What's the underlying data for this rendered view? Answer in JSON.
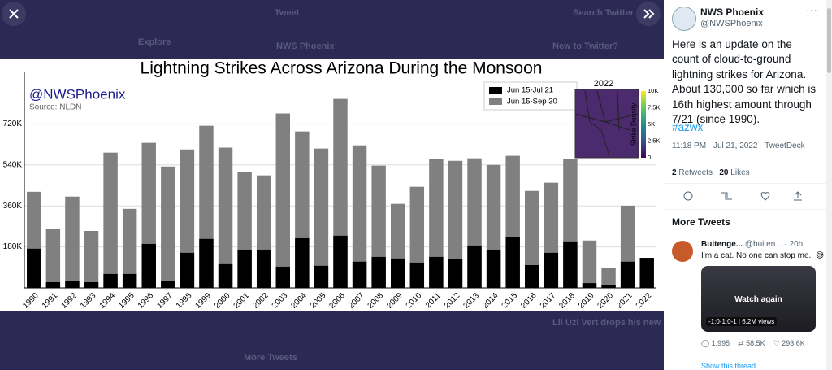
{
  "background": {
    "tweet": "Tweet",
    "explore": "Explore",
    "author": "NWS Phoenix",
    "search": "Search Twitter",
    "new_to_twitter": "New to Twitter?",
    "trend": "Lil Uzi Vert drops his new EP Red & White",
    "more_tweets": "More Tweets"
  },
  "chart_data": {
    "type": "bar",
    "title": "Lightning Strikes Across Arizona During the Monsoon",
    "watermark": "@NWSPhoenix",
    "source": "Source: NLDN",
    "categories": [
      "1990",
      "1991",
      "1992",
      "1993",
      "1994",
      "1995",
      "1996",
      "1997",
      "1998",
      "1999",
      "2000",
      "2001",
      "2002",
      "2003",
      "2004",
      "2005",
      "2006",
      "2007",
      "2008",
      "2009",
      "2010",
      "2011",
      "2012",
      "2013",
      "2014",
      "2015",
      "2016",
      "2017",
      "2018",
      "2019",
      "2020",
      "2021",
      "2022"
    ],
    "series": [
      {
        "name": "Jun 15-Jul 21",
        "color": "#000000",
        "values": [
          172000,
          25000,
          32000,
          25000,
          61000,
          61000,
          193000,
          29000,
          154000,
          215000,
          104000,
          168000,
          168000,
          93000,
          218000,
          97000,
          229000,
          115000,
          136000,
          129000,
          111000,
          136000,
          125000,
          186000,
          168000,
          222000,
          100000,
          154000,
          204000,
          21000,
          14000,
          115000,
          132000
        ]
      },
      {
        "name": "Jun 15-Sep 30",
        "color": "#808080",
        "values": [
          422000,
          258000,
          401000,
          250000,
          594000,
          347000,
          637000,
          533000,
          608000,
          712000,
          616000,
          508000,
          494000,
          766000,
          687000,
          612000,
          830000,
          626000,
          537000,
          369000,
          444000,
          565000,
          558000,
          569000,
          540000,
          580000,
          426000,
          462000,
          565000,
          208000,
          86000,
          361000,
          null
        ]
      }
    ],
    "ylim": [
      0,
      950000
    ],
    "yticks": [
      {
        "value": 180000,
        "label": "180K"
      },
      {
        "value": 360000,
        "label": "360K"
      },
      {
        "value": 540000,
        "label": "540K"
      },
      {
        "value": 720000,
        "label": "720K"
      }
    ],
    "grid": true,
    "legend": "upper right",
    "inset": {
      "title": "2022",
      "colorbar_label": "Strike Density",
      "colorbar_ticks": [
        "0",
        "2.5K",
        "5K",
        "7.5K",
        "10K"
      ]
    }
  },
  "tweet": {
    "author": "NWS Phoenix",
    "handle": "@NWSPhoenix",
    "text": "Here is an update on the count of cloud-to-ground lightning strikes for Arizona. About 130,000 so far which is 16th highest amount through 7/21 (since 1990).",
    "hashtag": "#azwx",
    "meta": "11:18 PM · Jul 21, 2022 · TweetDeck",
    "retweets": "2",
    "retweets_label": "Retweets",
    "likes": "20",
    "likes_label": "Likes"
  },
  "more_tweets": {
    "title": "More Tweets",
    "author": "Buitenge...",
    "handle": "@buiten...",
    "time": "· 20h",
    "text": "I'm a cat. No one can stop me.. 😅",
    "video_action": "Watch again",
    "video_time": "-1:0-1:0-1",
    "video_views": "6.2M views",
    "replies": "1,995",
    "retweets": "58.5K",
    "likes": "293.6K",
    "show_thread": "Show this thread"
  }
}
